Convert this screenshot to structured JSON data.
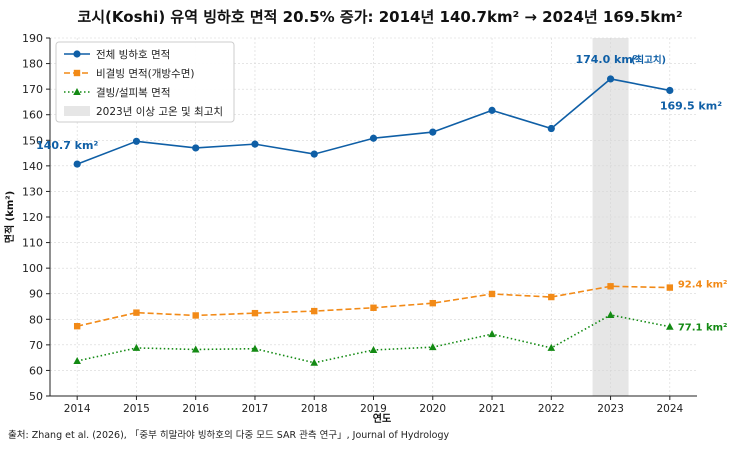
{
  "chart_data": {
    "type": "line",
    "title": "코시(Koshi) 유역 빙하호 면적 20.5% 증가: 2014년 140.7km² → 2024년 169.5km²",
    "xlabel": "연도",
    "ylabel": "면적 (km²)",
    "x": [
      2014,
      2015,
      2016,
      2017,
      2018,
      2019,
      2020,
      2021,
      2022,
      2023,
      2024
    ],
    "ylim": [
      50,
      190
    ],
    "yticks": [
      50,
      60,
      70,
      80,
      90,
      100,
      110,
      120,
      130,
      140,
      150,
      160,
      170,
      180,
      190
    ],
    "grid": true,
    "legend_position": "top-left",
    "highlight": {
      "x": 2023,
      "label": "2023년 이상 고온 및 최고치",
      "color": "#e6e6e6"
    },
    "series": [
      {
        "name": "전체 빙하호 면적",
        "color": "#0f5fa6",
        "marker": "circle",
        "dash": "solid",
        "values": [
          140.7,
          149.6,
          147.0,
          148.5,
          144.6,
          150.8,
          153.2,
          161.7,
          154.6,
          174.0,
          169.5
        ]
      },
      {
        "name": "비결빙 면적(개방수면)",
        "color": "#f28a17",
        "marker": "square",
        "dash": "dashed",
        "values": [
          77.3,
          82.6,
          81.5,
          82.4,
          83.2,
          84.5,
          86.3,
          89.9,
          88.7,
          92.9,
          92.4
        ]
      },
      {
        "name": "결빙/설피복 면적",
        "color": "#138a13",
        "marker": "triangle",
        "dash": "dotted",
        "values": [
          63.7,
          68.8,
          68.2,
          68.5,
          63.0,
          68.0,
          69.1,
          74.2,
          68.8,
          81.7,
          77.1
        ]
      }
    ],
    "annotations": [
      {
        "text": "140.7 km²",
        "x": 2014,
        "y": 140.7,
        "color": "#0f5fa6"
      },
      {
        "text": "174.0 km²",
        "x": 2023,
        "y": 174.0,
        "color": "#0f5fa6"
      },
      {
        "text": "(최고치)",
        "x": 2023,
        "y": 174.0,
        "color": "#0f5fa6"
      },
      {
        "text": "169.5 km²",
        "x": 2024,
        "y": 169.5,
        "color": "#0f5fa6"
      },
      {
        "text": "92.4 km²",
        "x": 2024,
        "y": 92.4,
        "color": "#f28a17"
      },
      {
        "text": "77.1 km²",
        "x": 2024,
        "y": 77.1,
        "color": "#138a13"
      }
    ],
    "source": "출처: Zhang et al. (2026), 「중부 히말라야 빙하호의 다중 모드 SAR 관측 연구」, Journal of Hydrology"
  }
}
